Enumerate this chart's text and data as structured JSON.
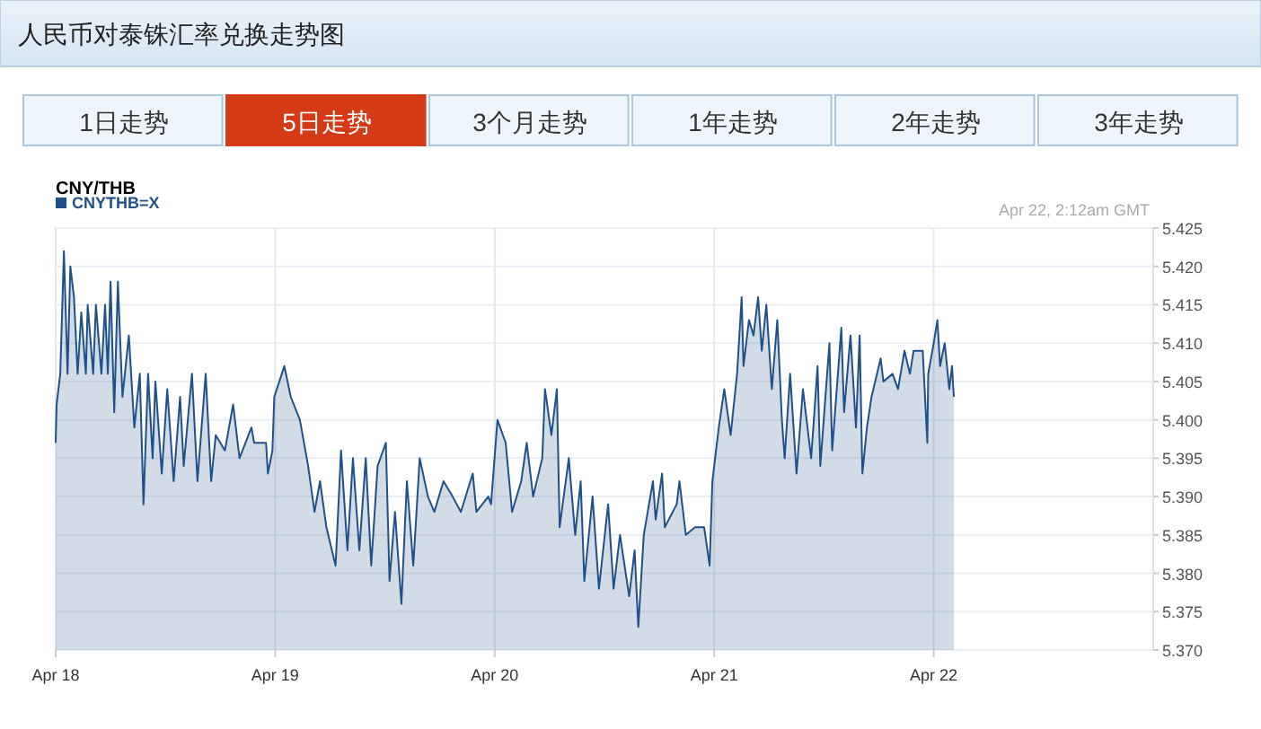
{
  "chart_data": {
    "type": "area",
    "title": "人民币对泰铢汇率兑换走势图",
    "subtitle": "CNY/THB",
    "annotations": [
      "1日走势",
      "5日走势",
      "3个月走势",
      "1年走势",
      "2年走势",
      "3年走势",
      "Apr 22, 2:12am GMT"
    ],
    "x": [
      "--04-18T00:00",
      "--04-18T00:06",
      "--04-18T00:30",
      "--04-18T00:54",
      "--04-18T01:18",
      "--04-18T01:36",
      "--04-18T02:00",
      "--04-18T02:24",
      "--04-18T02:48",
      "--04-18T03:18",
      "--04-18T03:30",
      "--04-18T04:06",
      "--04-18T04:24",
      "--04-18T05:00",
      "--04-18T05:24",
      "--04-18T05:42",
      "--04-18T06:00",
      "--04-18T06:24",
      "--04-18T06:48",
      "--04-18T07:18",
      "--04-18T08:00",
      "--04-18T08:36",
      "--04-18T09:12",
      "--04-18T09:36",
      "--04-18T10:06",
      "--04-18T10:36",
      "--04-18T10:54",
      "--04-18T11:36",
      "--04-18T12:12",
      "--04-18T12:54",
      "--04-18T13:36",
      "--04-18T14:00",
      "--04-18T14:54",
      "--04-18T15:30",
      "--04-18T16:24",
      "--04-18T17:00",
      "--04-18T17:30",
      "--04-18T18:30",
      "--04-18T19:24",
      "--04-18T20:06",
      "--04-18T21:24",
      "--04-18T21:42",
      "--04-18T23:00",
      "--04-18T23:12",
      "--04-18T23:42",
      "--04-18T23:54",
      "--04-19T01:00",
      "--04-19T01:42",
      "--04-19T02:42",
      "--04-19T03:36",
      "--04-19T04:18",
      "--04-19T04:54",
      "--04-19T05:36",
      "--04-19T06:36",
      "--04-19T07:12",
      "--04-19T07:54",
      "--04-19T08:30",
      "--04-19T09:12",
      "--04-19T09:54",
      "--04-19T10:30",
      "--04-19T11:12",
      "--04-19T12:06",
      "--04-19T12:30",
      "--04-19T13:06",
      "--04-19T13:48",
      "--04-19T14:24",
      "--04-19T15:06",
      "--04-19T15:48",
      "--04-19T16:42",
      "--04-19T17:24",
      "--04-19T18:24",
      "--04-19T19:24",
      "--04-19T20:18",
      "--04-19T21:36",
      "--04-19T22:00",
      "--04-19T23:18",
      "--04-19T23:36",
      "--04-20T00:18",
      "--04-20T01:12",
      "--04-20T01:54",
      "--04-20T02:54",
      "--04-20T03:30",
      "--04-20T04:12",
      "--04-20T05:12",
      "--04-20T05:30",
      "--04-20T06:12",
      "--04-20T06:48",
      "--04-20T07:06",
      "--04-20T08:06",
      "--04-20T08:48",
      "--04-20T09:24",
      "--04-20T09:48",
      "--04-20T10:42",
      "--04-20T11:24",
      "--04-20T12:24",
      "--04-20T13:00",
      "--04-20T13:42",
      "--04-20T14:42",
      "--04-20T15:18",
      "--04-20T15:42",
      "--04-20T16:18",
      "--04-20T17:18",
      "--04-20T17:36",
      "--04-20T18:18",
      "--04-20T18:36",
      "--04-20T19:54",
      "--04-20T20:12",
      "--04-20T20:54",
      "--04-20T21:54",
      "--04-20T22:54",
      "--04-20T23:30",
      "--04-20T23:48",
      "--04-21T00:30",
      "--04-21T01:06",
      "--04-21T01:48",
      "--04-21T02:30",
      "--04-21T03:00",
      "--04-21T03:12",
      "--04-21T03:48",
      "--04-21T04:18",
      "--04-21T04:48",
      "--04-21T05:12",
      "--04-21T05:42",
      "--04-21T06:18",
      "--04-21T06:54",
      "--04-21T07:24",
      "--04-21T07:42",
      "--04-21T08:18",
      "--04-21T09:00",
      "--04-21T09:42",
      "--04-21T10:36",
      "--04-21T11:18",
      "--04-21T11:36",
      "--04-21T12:36",
      "--04-21T12:54",
      "--04-21T13:54",
      "--04-21T14:12",
      "--04-21T14:54",
      "--04-21T15:30",
      "--04-21T15:54",
      "--04-21T16:12",
      "--04-21T16:42",
      "--04-21T17:12",
      "--04-21T18:12",
      "--04-21T18:30",
      "--04-21T19:30",
      "--04-21T20:06",
      "--04-21T20:48",
      "--04-21T21:24",
      "--04-21T21:48",
      "--04-21T22:48",
      "--04-21T23:18",
      "--04-21T23:24",
      "--04-22T00:00",
      "--04-22T00:24",
      "--04-22T00:42",
      "--04-22T01:12",
      "--04-22T01:42",
      "--04-22T02:00",
      "--04-22T02:12"
    ],
    "series": [
      {
        "name": "CNYTHB=X",
        "color": "#1f5188",
        "values": [
          5.397,
          5.402,
          5.406,
          5.422,
          5.406,
          5.42,
          5.416,
          5.406,
          5.414,
          5.406,
          5.415,
          5.406,
          5.415,
          5.406,
          5.415,
          5.406,
          5.418,
          5.401,
          5.418,
          5.403,
          5.411,
          5.399,
          5.406,
          5.389,
          5.406,
          5.395,
          5.405,
          5.393,
          5.404,
          5.392,
          5.403,
          5.394,
          5.406,
          5.392,
          5.406,
          5.392,
          5.398,
          5.396,
          5.402,
          5.395,
          5.399,
          5.397,
          5.397,
          5.393,
          5.396,
          5.403,
          5.407,
          5.403,
          5.4,
          5.394,
          5.388,
          5.392,
          5.386,
          5.381,
          5.396,
          5.383,
          5.395,
          5.383,
          5.395,
          5.381,
          5.394,
          5.397,
          5.379,
          5.388,
          5.376,
          5.392,
          5.381,
          5.395,
          5.39,
          5.388,
          5.392,
          5.39,
          5.388,
          5.393,
          5.388,
          5.39,
          5.389,
          5.4,
          5.397,
          5.388,
          5.392,
          5.397,
          5.39,
          5.395,
          5.404,
          5.398,
          5.404,
          5.386,
          5.395,
          5.385,
          5.392,
          5.379,
          5.39,
          5.378,
          5.389,
          5.378,
          5.385,
          5.377,
          5.383,
          5.373,
          5.385,
          5.392,
          5.387,
          5.393,
          5.386,
          5.389,
          5.392,
          5.385,
          5.386,
          5.386,
          5.381,
          5.392,
          5.399,
          5.404,
          5.398,
          5.406,
          5.416,
          5.407,
          5.413,
          5.411,
          5.416,
          5.409,
          5.415,
          5.404,
          5.413,
          5.4,
          5.395,
          5.406,
          5.393,
          5.404,
          5.395,
          5.407,
          5.394,
          5.41,
          5.396,
          5.412,
          5.401,
          5.411,
          5.399,
          5.411,
          5.393,
          5.399,
          5.403,
          5.408,
          5.405,
          5.406,
          5.404,
          5.409,
          5.406,
          5.409,
          5.409,
          5.397,
          5.406,
          5.41,
          5.413,
          5.407,
          5.41,
          5.404,
          5.407,
          5.403
        ]
      }
    ],
    "xlim": [
      "--04-18",
      "--04-23"
    ],
    "xticks": [
      {
        "value": "--04-18",
        "label": "Apr 18"
      },
      {
        "value": "--04-19",
        "label": "Apr 19"
      },
      {
        "value": "--04-20",
        "label": "Apr 20"
      },
      {
        "value": "--04-21",
        "label": "Apr 21"
      },
      {
        "value": "--04-22",
        "label": "Apr 22"
      }
    ],
    "ylim": [
      5.37,
      5.425
    ],
    "yticks": [
      {
        "value": 5.37,
        "label": "5.370"
      },
      5.375,
      {
        "value": 5.38,
        "label": "5.380"
      },
      5.385,
      {
        "value": 5.39,
        "label": "5.390"
      },
      5.395,
      {
        "value": 5.4,
        "label": "5.400"
      },
      5.405,
      {
        "value": 5.41,
        "label": "5.410"
      },
      5.415,
      {
        "value": 5.42,
        "label": "5.420"
      },
      5.425
    ],
    "grid": true,
    "legend": "top left"
  }
}
